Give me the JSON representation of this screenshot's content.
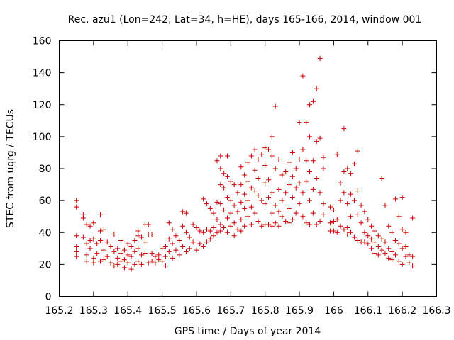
{
  "chart_data": {
    "type": "scatter",
    "title": "Rec. azu1 (Lon=242, Lat=34, h=HE), days 165-166, 2014, window 001",
    "xlabel": "GPS time / Days of year 2014",
    "ylabel": "STEC from uqrg / TECUs",
    "xlim": [
      165.2,
      166.3
    ],
    "ylim": [
      0,
      160
    ],
    "xticks": [
      "165.2",
      "165.3",
      "165.4",
      "165.5",
      "165.6",
      "165.7",
      "165.8",
      "165.9",
      "166",
      "166.1",
      "166.2",
      "166.3"
    ],
    "yticks": [
      "0",
      "20",
      "40",
      "60",
      "80",
      "100",
      "120",
      "140",
      "160"
    ],
    "grid": false,
    "marker": "plus",
    "color": "#cc0000",
    "points": [
      [
        165.25,
        60
      ],
      [
        165.25,
        56
      ],
      [
        165.25,
        38
      ],
      [
        165.25,
        31
      ],
      [
        165.25,
        28
      ],
      [
        165.25,
        25
      ],
      [
        165.27,
        51
      ],
      [
        165.27,
        49
      ],
      [
        165.27,
        37
      ],
      [
        165.28,
        45
      ],
      [
        165.28,
        33
      ],
      [
        165.28,
        26
      ],
      [
        165.28,
        22
      ],
      [
        165.29,
        44
      ],
      [
        165.29,
        35
      ],
      [
        165.29,
        30
      ],
      [
        165.3,
        46
      ],
      [
        165.3,
        36
      ],
      [
        165.3,
        24
      ],
      [
        165.3,
        21
      ],
      [
        165.31,
        33
      ],
      [
        165.31,
        27
      ],
      [
        165.32,
        51
      ],
      [
        165.32,
        41
      ],
      [
        165.32,
        35
      ],
      [
        165.32,
        22
      ],
      [
        165.33,
        42
      ],
      [
        165.33,
        29
      ],
      [
        165.33,
        23
      ],
      [
        165.34,
        34
      ],
      [
        165.34,
        25
      ],
      [
        165.35,
        31
      ],
      [
        165.35,
        21
      ],
      [
        165.36,
        39
      ],
      [
        165.36,
        28
      ],
      [
        165.36,
        19
      ],
      [
        165.37,
        30
      ],
      [
        165.37,
        24
      ],
      [
        165.37,
        20
      ],
      [
        165.38,
        35
      ],
      [
        165.38,
        27
      ],
      [
        165.38,
        22
      ],
      [
        165.39,
        29
      ],
      [
        165.39,
        23
      ],
      [
        165.39,
        18
      ],
      [
        165.4,
        33
      ],
      [
        165.4,
        26
      ],
      [
        165.4,
        21
      ],
      [
        165.41,
        31
      ],
      [
        165.41,
        25
      ],
      [
        165.41,
        17
      ],
      [
        165.42,
        35
      ],
      [
        165.42,
        28
      ],
      [
        165.42,
        20
      ],
      [
        165.43,
        41
      ],
      [
        165.43,
        38
      ],
      [
        165.43,
        30
      ],
      [
        165.43,
        22
      ],
      [
        165.44,
        37
      ],
      [
        165.44,
        26
      ],
      [
        165.44,
        20
      ],
      [
        165.45,
        45
      ],
      [
        165.45,
        34
      ],
      [
        165.45,
        27
      ],
      [
        165.46,
        45
      ],
      [
        165.46,
        39
      ],
      [
        165.46,
        21
      ],
      [
        165.47,
        39
      ],
      [
        165.47,
        27
      ],
      [
        165.47,
        22
      ],
      [
        165.48,
        25
      ],
      [
        165.48,
        21
      ],
      [
        165.49,
        26
      ],
      [
        165.49,
        23
      ],
      [
        165.5,
        30
      ],
      [
        165.5,
        22
      ],
      [
        165.51,
        31
      ],
      [
        165.51,
        25
      ],
      [
        165.51,
        19
      ],
      [
        165.52,
        46
      ],
      [
        165.52,
        36
      ],
      [
        165.52,
        28
      ],
      [
        165.53,
        42
      ],
      [
        165.53,
        33
      ],
      [
        165.53,
        24
      ],
      [
        165.54,
        38
      ],
      [
        165.54,
        29
      ],
      [
        165.55,
        35
      ],
      [
        165.55,
        26
      ],
      [
        165.56,
        53
      ],
      [
        165.56,
        44
      ],
      [
        165.56,
        31
      ],
      [
        165.57,
        52
      ],
      [
        165.57,
        40
      ],
      [
        165.57,
        28
      ],
      [
        165.58,
        37
      ],
      [
        165.58,
        30
      ],
      [
        165.59,
        45
      ],
      [
        165.59,
        34
      ],
      [
        165.6,
        43
      ],
      [
        165.6,
        29
      ],
      [
        165.61,
        41
      ],
      [
        165.61,
        33
      ],
      [
        165.62,
        61
      ],
      [
        165.62,
        40
      ],
      [
        165.62,
        31
      ],
      [
        165.63,
        58
      ],
      [
        165.63,
        42
      ],
      [
        165.63,
        34
      ],
      [
        165.64,
        55
      ],
      [
        165.64,
        41
      ],
      [
        165.64,
        36
      ],
      [
        165.65,
        52
      ],
      [
        165.65,
        43
      ],
      [
        165.65,
        38
      ],
      [
        165.66,
        85
      ],
      [
        165.66,
        59
      ],
      [
        165.66,
        48
      ],
      [
        165.66,
        40
      ],
      [
        165.67,
        88
      ],
      [
        165.67,
        80
      ],
      [
        165.67,
        70
      ],
      [
        165.67,
        58
      ],
      [
        165.67,
        45
      ],
      [
        165.67,
        41
      ],
      [
        165.68,
        77
      ],
      [
        165.68,
        68
      ],
      [
        165.68,
        54
      ],
      [
        165.68,
        43
      ],
      [
        165.69,
        88
      ],
      [
        165.69,
        75
      ],
      [
        165.69,
        62
      ],
      [
        165.69,
        49
      ],
      [
        165.69,
        40
      ],
      [
        165.7,
        72
      ],
      [
        165.7,
        60
      ],
      [
        165.7,
        52
      ],
      [
        165.7,
        44
      ],
      [
        165.71,
        70
      ],
      [
        165.71,
        57
      ],
      [
        165.71,
        46
      ],
      [
        165.71,
        38
      ],
      [
        165.72,
        65
      ],
      [
        165.72,
        53
      ],
      [
        165.72,
        42
      ],
      [
        165.73,
        81
      ],
      [
        165.73,
        70
      ],
      [
        165.73,
        59
      ],
      [
        165.73,
        48
      ],
      [
        165.73,
        41
      ],
      [
        165.74,
        76
      ],
      [
        165.74,
        64
      ],
      [
        165.74,
        55
      ],
      [
        165.74,
        44
      ],
      [
        165.75,
        84
      ],
      [
        165.75,
        72
      ],
      [
        165.75,
        60
      ],
      [
        165.75,
        50
      ],
      [
        165.76,
        88
      ],
      [
        165.76,
        68
      ],
      [
        165.76,
        56
      ],
      [
        165.76,
        45
      ],
      [
        165.77,
        92
      ],
      [
        165.77,
        79
      ],
      [
        165.77,
        66
      ],
      [
        165.77,
        52
      ],
      [
        165.78,
        86
      ],
      [
        165.78,
        74
      ],
      [
        165.78,
        63
      ],
      [
        165.78,
        47
      ],
      [
        165.79,
        89
      ],
      [
        165.79,
        60
      ],
      [
        165.79,
        44
      ],
      [
        165.8,
        93
      ],
      [
        165.8,
        82
      ],
      [
        165.8,
        71
      ],
      [
        165.8,
        58
      ],
      [
        165.8,
        45
      ],
      [
        165.81,
        92
      ],
      [
        165.81,
        73
      ],
      [
        165.81,
        62
      ],
      [
        165.81,
        45
      ],
      [
        165.82,
        100
      ],
      [
        165.82,
        88
      ],
      [
        165.82,
        65
      ],
      [
        165.82,
        52
      ],
      [
        165.82,
        44
      ],
      [
        165.83,
        119
      ],
      [
        165.83,
        80
      ],
      [
        165.83,
        57
      ],
      [
        165.83,
        46
      ],
      [
        165.84,
        86
      ],
      [
        165.84,
        67
      ],
      [
        165.84,
        53
      ],
      [
        165.84,
        44
      ],
      [
        165.85,
        76
      ],
      [
        165.85,
        60
      ],
      [
        165.85,
        50
      ],
      [
        165.86,
        78
      ],
      [
        165.86,
        65
      ],
      [
        165.86,
        47
      ],
      [
        165.87,
        84
      ],
      [
        165.87,
        70
      ],
      [
        165.87,
        55
      ],
      [
        165.87,
        46
      ],
      [
        165.88,
        90
      ],
      [
        165.88,
        75
      ],
      [
        165.88,
        62
      ],
      [
        165.88,
        48
      ],
      [
        165.89,
        80
      ],
      [
        165.89,
        68
      ],
      [
        165.89,
        52
      ],
      [
        165.9,
        109
      ],
      [
        165.9,
        86
      ],
      [
        165.9,
        71
      ],
      [
        165.9,
        58
      ],
      [
        165.91,
        138
      ],
      [
        165.91,
        92
      ],
      [
        165.91,
        65
      ],
      [
        165.91,
        50
      ],
      [
        165.92,
        109
      ],
      [
        165.92,
        85
      ],
      [
        165.92,
        72
      ],
      [
        165.92,
        46
      ],
      [
        165.93,
        120
      ],
      [
        165.93,
        100
      ],
      [
        165.93,
        78
      ],
      [
        165.93,
        60
      ],
      [
        165.93,
        45
      ],
      [
        165.94,
        122
      ],
      [
        165.94,
        85
      ],
      [
        165.94,
        67
      ],
      [
        165.94,
        52
      ],
      [
        165.95,
        130
      ],
      [
        165.95,
        97
      ],
      [
        165.95,
        74
      ],
      [
        165.95,
        45
      ],
      [
        165.96,
        149
      ],
      [
        165.96,
        99
      ],
      [
        165.96,
        65
      ],
      [
        165.96,
        47
      ],
      [
        165.97,
        87
      ],
      [
        165.97,
        80
      ],
      [
        165.97,
        58
      ],
      [
        165.97,
        51
      ],
      [
        165.99,
        56
      ],
      [
        165.99,
        46
      ],
      [
        165.99,
        41
      ],
      [
        166.0,
        54
      ],
      [
        166.0,
        47
      ],
      [
        166.0,
        41
      ],
      [
        166.01,
        89
      ],
      [
        166.01,
        48
      ],
      [
        166.01,
        40
      ],
      [
        166.02,
        71
      ],
      [
        166.02,
        60
      ],
      [
        166.02,
        44
      ],
      [
        166.03,
        105
      ],
      [
        166.03,
        78
      ],
      [
        166.03,
        65
      ],
      [
        166.03,
        42
      ],
      [
        166.04,
        80
      ],
      [
        166.04,
        58
      ],
      [
        166.04,
        43
      ],
      [
        166.04,
        39
      ],
      [
        166.05,
        77
      ],
      [
        166.05,
        64
      ],
      [
        166.05,
        50
      ],
      [
        166.05,
        40
      ],
      [
        166.06,
        83
      ],
      [
        166.06,
        60
      ],
      [
        166.06,
        37
      ],
      [
        166.07,
        91
      ],
      [
        166.07,
        66
      ],
      [
        166.07,
        51
      ],
      [
        166.07,
        35
      ],
      [
        166.08,
        57
      ],
      [
        166.08,
        46
      ],
      [
        166.08,
        34
      ],
      [
        166.09,
        53
      ],
      [
        166.09,
        40
      ],
      [
        166.09,
        34
      ],
      [
        166.1,
        48
      ],
      [
        166.1,
        38
      ],
      [
        166.1,
        33
      ],
      [
        166.11,
        44
      ],
      [
        166.11,
        36
      ],
      [
        166.11,
        30
      ],
      [
        166.12,
        41
      ],
      [
        166.12,
        34
      ],
      [
        166.12,
        27
      ],
      [
        166.13,
        38
      ],
      [
        166.13,
        31
      ],
      [
        166.13,
        26
      ],
      [
        166.14,
        74
      ],
      [
        166.14,
        36
      ],
      [
        166.14,
        29
      ],
      [
        166.15,
        57
      ],
      [
        166.15,
        34
      ],
      [
        166.15,
        27
      ],
      [
        166.16,
        44
      ],
      [
        166.16,
        30
      ],
      [
        166.16,
        24
      ],
      [
        166.17,
        40
      ],
      [
        166.17,
        28
      ],
      [
        166.17,
        23
      ],
      [
        166.18,
        61
      ],
      [
        166.18,
        35
      ],
      [
        166.18,
        26
      ],
      [
        166.19,
        50
      ],
      [
        166.19,
        33
      ],
      [
        166.19,
        22
      ],
      [
        166.2,
        62
      ],
      [
        166.2,
        42
      ],
      [
        166.2,
        30
      ],
      [
        166.2,
        20
      ],
      [
        166.21,
        40
      ],
      [
        166.21,
        31
      ],
      [
        166.21,
        25
      ],
      [
        166.22,
        26
      ],
      [
        166.22,
        21
      ],
      [
        166.23,
        49
      ],
      [
        166.23,
        25
      ],
      [
        166.23,
        19
      ]
    ]
  }
}
